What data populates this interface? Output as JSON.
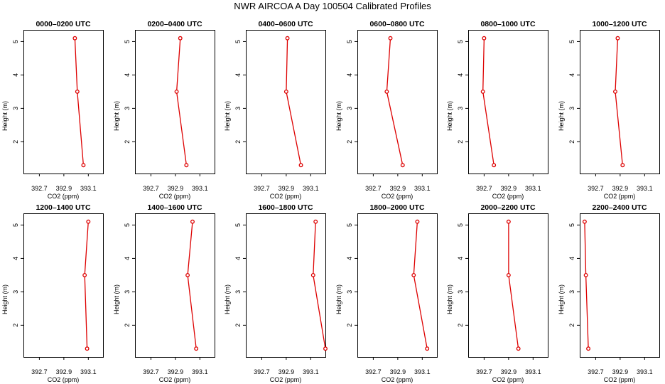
{
  "title": "NWR AIRCOA A  Day 100504  Calibrated Profiles",
  "colors": {
    "profile": "#dd0000",
    "axis": "#000000"
  },
  "chart_data": [
    {
      "type": "line",
      "title": "0000–0200 UTC",
      "xlabel": "CO2 (ppm)",
      "ylabel": "Height (m)",
      "x_ticks": [
        "392.7",
        "392.9",
        "393.1"
      ],
      "y_ticks": [
        "2",
        "3",
        "4",
        "5"
      ],
      "xlim": [
        392.57,
        393.22
      ],
      "ylim": [
        1.05,
        5.35
      ],
      "points": [
        {
          "x": 392.99,
          "y": 5.1
        },
        {
          "x": 393.01,
          "y": 3.5
        },
        {
          "x": 393.06,
          "y": 1.3
        }
      ]
    },
    {
      "type": "line",
      "title": "0200–0400 UTC",
      "xlabel": "CO2 (ppm)",
      "ylabel": "Height (m)",
      "x_ticks": [
        "392.7",
        "392.9",
        "393.1"
      ],
      "y_ticks": [
        "2",
        "3",
        "4",
        "5"
      ],
      "xlim": [
        392.57,
        393.22
      ],
      "ylim": [
        1.05,
        5.35
      ],
      "points": [
        {
          "x": 392.94,
          "y": 5.1
        },
        {
          "x": 392.91,
          "y": 3.5
        },
        {
          "x": 392.99,
          "y": 1.3
        }
      ]
    },
    {
      "type": "line",
      "title": "0400–0600 UTC",
      "xlabel": "CO2 (ppm)",
      "ylabel": "Height (m)",
      "x_ticks": [
        "392.7",
        "392.9",
        "393.1"
      ],
      "y_ticks": [
        "2",
        "3",
        "4",
        "5"
      ],
      "xlim": [
        392.57,
        393.22
      ],
      "ylim": [
        1.05,
        5.35
      ],
      "points": [
        {
          "x": 392.91,
          "y": 5.1
        },
        {
          "x": 392.9,
          "y": 3.5
        },
        {
          "x": 393.02,
          "y": 1.3
        }
      ]
    },
    {
      "type": "line",
      "title": "0600–0800 UTC",
      "xlabel": "CO2 (ppm)",
      "ylabel": "Height (m)",
      "x_ticks": [
        "392.7",
        "392.9",
        "393.1"
      ],
      "y_ticks": [
        "2",
        "3",
        "4",
        "5"
      ],
      "xlim": [
        392.57,
        393.22
      ],
      "ylim": [
        1.05,
        5.35
      ],
      "points": [
        {
          "x": 392.84,
          "y": 5.1
        },
        {
          "x": 392.81,
          "y": 3.5
        },
        {
          "x": 392.94,
          "y": 1.3
        }
      ]
    },
    {
      "type": "line",
      "title": "0800–1000 UTC",
      "xlabel": "CO2 (ppm)",
      "ylabel": "Height (m)",
      "x_ticks": [
        "392.7",
        "392.9",
        "393.1"
      ],
      "y_ticks": [
        "2",
        "3",
        "4",
        "5"
      ],
      "xlim": [
        392.57,
        393.22
      ],
      "ylim": [
        1.05,
        5.35
      ],
      "points": [
        {
          "x": 392.7,
          "y": 5.1
        },
        {
          "x": 392.69,
          "y": 3.5
        },
        {
          "x": 392.78,
          "y": 1.3
        }
      ]
    },
    {
      "type": "line",
      "title": "1000–1200 UTC",
      "xlabel": "CO2 (ppm)",
      "ylabel": "Height (m)",
      "x_ticks": [
        "392.7",
        "392.9",
        "393.1"
      ],
      "y_ticks": [
        "2",
        "3",
        "4",
        "5"
      ],
      "xlim": [
        392.57,
        393.22
      ],
      "ylim": [
        1.05,
        5.35
      ],
      "points": [
        {
          "x": 392.88,
          "y": 5.1
        },
        {
          "x": 392.86,
          "y": 3.5
        },
        {
          "x": 392.92,
          "y": 1.3
        }
      ]
    },
    {
      "type": "line",
      "title": "1200–1400 UTC",
      "xlabel": "CO2 (ppm)",
      "ylabel": "Height (m)",
      "x_ticks": [
        "392.7",
        "392.9",
        "393.1"
      ],
      "y_ticks": [
        "2",
        "3",
        "4",
        "5"
      ],
      "xlim": [
        392.57,
        393.22
      ],
      "ylim": [
        1.05,
        5.35
      ],
      "points": [
        {
          "x": 393.1,
          "y": 5.1
        },
        {
          "x": 393.07,
          "y": 3.5
        },
        {
          "x": 393.09,
          "y": 1.3
        }
      ]
    },
    {
      "type": "line",
      "title": "1400–1600 UTC",
      "xlabel": "CO2 (ppm)",
      "ylabel": "Height (m)",
      "x_ticks": [
        "392.7",
        "392.9",
        "393.1"
      ],
      "y_ticks": [
        "2",
        "3",
        "4",
        "5"
      ],
      "xlim": [
        392.57,
        393.22
      ],
      "ylim": [
        1.05,
        5.35
      ],
      "points": [
        {
          "x": 393.04,
          "y": 5.1
        },
        {
          "x": 393.0,
          "y": 3.5
        },
        {
          "x": 393.07,
          "y": 1.3
        }
      ]
    },
    {
      "type": "line",
      "title": "1600–1800 UTC",
      "xlabel": "CO2 (ppm)",
      "ylabel": "Height (m)",
      "x_ticks": [
        "392.7",
        "392.9",
        "393.1"
      ],
      "y_ticks": [
        "2",
        "3",
        "4",
        "5"
      ],
      "xlim": [
        392.57,
        393.22
      ],
      "ylim": [
        1.05,
        5.35
      ],
      "points": [
        {
          "x": 393.14,
          "y": 5.1
        },
        {
          "x": 393.12,
          "y": 3.5
        },
        {
          "x": 393.22,
          "y": 1.3
        }
      ]
    },
    {
      "type": "line",
      "title": "1800–2000 UTC",
      "xlabel": "CO2 (ppm)",
      "ylabel": "Height (m)",
      "x_ticks": [
        "392.7",
        "392.9",
        "393.1"
      ],
      "y_ticks": [
        "2",
        "3",
        "4",
        "5"
      ],
      "xlim": [
        392.57,
        393.22
      ],
      "ylim": [
        1.05,
        5.35
      ],
      "points": [
        {
          "x": 393.06,
          "y": 5.1
        },
        {
          "x": 393.03,
          "y": 3.5
        },
        {
          "x": 393.14,
          "y": 1.3
        }
      ]
    },
    {
      "type": "line",
      "title": "2000–2200 UTC",
      "xlabel": "CO2 (ppm)",
      "ylabel": "Height (m)",
      "x_ticks": [
        "392.7",
        "392.9",
        "393.1"
      ],
      "y_ticks": [
        "2",
        "3",
        "4",
        "5"
      ],
      "xlim": [
        392.57,
        393.22
      ],
      "ylim": [
        1.05,
        5.35
      ],
      "points": [
        {
          "x": 392.9,
          "y": 5.1
        },
        {
          "x": 392.9,
          "y": 3.5
        },
        {
          "x": 392.98,
          "y": 1.3
        }
      ]
    },
    {
      "type": "line",
      "title": "2200–2400 UTC",
      "xlabel": "CO2 (ppm)",
      "ylabel": "Height (m)",
      "x_ticks": [
        "392.7",
        "392.9",
        "393.1"
      ],
      "y_ticks": [
        "2",
        "3",
        "4",
        "5"
      ],
      "xlim": [
        392.57,
        393.22
      ],
      "ylim": [
        1.05,
        5.35
      ],
      "points": [
        {
          "x": 392.61,
          "y": 5.1
        },
        {
          "x": 392.62,
          "y": 3.5
        },
        {
          "x": 392.64,
          "y": 1.3
        }
      ]
    }
  ]
}
